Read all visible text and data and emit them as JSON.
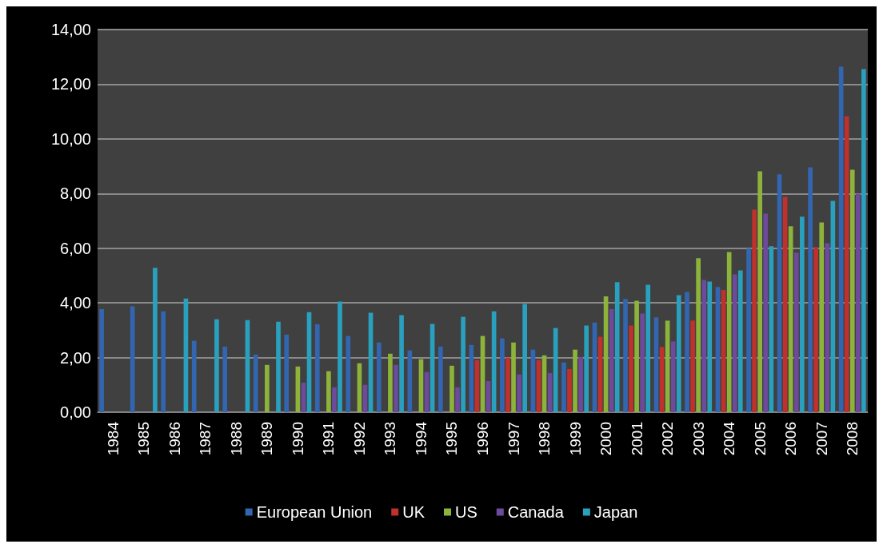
{
  "chart_data": {
    "type": "bar",
    "categories": [
      "1984",
      "1985",
      "1986",
      "1987",
      "1988",
      "1989",
      "1990",
      "1991",
      "1992",
      "1993",
      "1994",
      "1995",
      "1996",
      "1997",
      "1998",
      "1999",
      "2000",
      "2001",
      "2002",
      "2003",
      "2004",
      "2005",
      "2006",
      "2007",
      "2008"
    ],
    "series": [
      {
        "name": "European Union",
        "color": "#3366b0",
        "values": [
          3.77,
          3.87,
          3.69,
          2.61,
          2.4,
          2.11,
          2.84,
          3.22,
          2.79,
          2.55,
          2.26,
          2.4,
          2.46,
          2.7,
          2.29,
          1.82,
          3.28,
          4.14,
          3.47,
          4.4,
          4.58,
          5.99,
          8.7,
          8.96,
          12.64
        ]
      },
      {
        "name": "UK",
        "color": "#c0302c",
        "values": [
          null,
          null,
          null,
          null,
          null,
          null,
          null,
          null,
          null,
          null,
          null,
          null,
          1.91,
          2.0,
          1.91,
          1.58,
          2.76,
          3.17,
          2.39,
          3.35,
          4.47,
          7.41,
          7.88,
          6.04,
          10.83
        ]
      },
      {
        "name": "US",
        "color": "#8db33a",
        "values": [
          null,
          null,
          null,
          null,
          null,
          1.73,
          1.67,
          1.5,
          1.79,
          2.14,
          1.94,
          1.7,
          2.79,
          2.55,
          2.08,
          2.29,
          4.24,
          4.08,
          3.35,
          5.63,
          5.86,
          8.81,
          6.8,
          6.94,
          8.87
        ]
      },
      {
        "name": "Canada",
        "color": "#6e4a9c",
        "values": [
          null,
          null,
          null,
          null,
          null,
          null,
          1.08,
          0.91,
          1.0,
          1.73,
          1.47,
          0.91,
          1.14,
          1.38,
          1.43,
          2.02,
          3.77,
          3.61,
          2.59,
          4.84,
          5.04,
          7.26,
          5.84,
          6.18,
          7.99
        ]
      },
      {
        "name": "Japan",
        "color": "#2aa0bf",
        "values": [
          null,
          5.28,
          4.16,
          3.4,
          3.37,
          3.31,
          3.66,
          4.05,
          3.64,
          3.55,
          3.23,
          3.49,
          3.69,
          3.96,
          3.08,
          3.17,
          4.76,
          4.66,
          4.28,
          4.78,
          5.19,
          6.07,
          7.15,
          7.73,
          12.55
        ]
      }
    ],
    "ylim": [
      0,
      14
    ],
    "yticks": [
      {
        "value": 0,
        "label": "0,00"
      },
      {
        "value": 2,
        "label": "2,00"
      },
      {
        "value": 4,
        "label": "4,00"
      },
      {
        "value": 6,
        "label": "6,00"
      },
      {
        "value": 8,
        "label": "8,00"
      },
      {
        "value": 10,
        "label": "10,00"
      },
      {
        "value": 12,
        "label": "12,00"
      },
      {
        "value": 14,
        "label": "14,00"
      }
    ],
    "grid": "y",
    "legend": "bottom"
  }
}
